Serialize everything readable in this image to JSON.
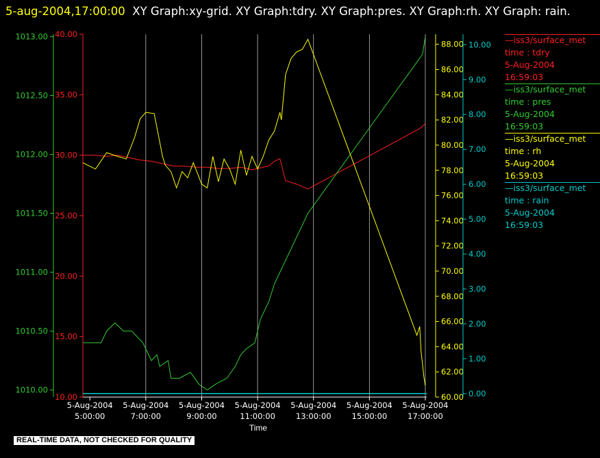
{
  "title": {
    "timestamp": "5-aug-2004,17:00:00",
    "graphs": "XY Graph:xy-grid.  XY Graph:tdry.  XY Graph:pres.  XY Graph:rh.  XY Graph: rain."
  },
  "footer": {
    "disclaimer": "REAL-TIME DATA, NOT CHECKED FOR QUALITY"
  },
  "colors": {
    "tdry": "#ff2020",
    "pres": "#33cc33",
    "rh": "#ffff00",
    "rain": "#00cccc",
    "grid": "#ffffff"
  },
  "chart_data": {
    "type": "line",
    "xlabel": "Time",
    "xlim": [
      4.75,
      17.05
    ],
    "x_ticks": [
      5,
      7,
      9,
      11,
      13,
      15,
      17
    ],
    "x_tick_labels": [
      [
        "5-Aug-2004",
        "5:00:00"
      ],
      [
        "5-Aug-2004",
        "7:00:00"
      ],
      [
        "5-Aug-2004",
        "9:00:00"
      ],
      [
        "5-Aug-2004",
        "11:00:00"
      ],
      [
        "5-Aug-2004",
        "13:00:00"
      ],
      [
        "5-Aug-2004",
        "15:00:00"
      ],
      [
        "5-Aug-2004",
        "17:00:00"
      ]
    ],
    "grid": "vertical",
    "axes": {
      "tdry": {
        "range": [
          10,
          40
        ],
        "ticks": [
          "10.00",
          "15.00",
          "20.00",
          "25.00",
          "30.00",
          "35.00",
          "40.00"
        ]
      },
      "pres": {
        "range": [
          1009.94,
          1013.02
        ],
        "ticks": [
          "1010.00",
          "1010.50",
          "1011.00",
          "1011.50",
          "1012.00",
          "1012.50",
          "1013.00"
        ]
      },
      "rh": {
        "range": [
          60,
          88.8
        ],
        "ticks": [
          "60.00",
          "62.00",
          "64.00",
          "66.00",
          "68.00",
          "70.00",
          "72.00",
          "74.00",
          "76.00",
          "78.00",
          "80.00",
          "82.00",
          "84.00",
          "86.00",
          "88.00"
        ]
      },
      "rain": {
        "range": [
          -0.1,
          10.3
        ],
        "ticks": [
          "0.00",
          "1.00",
          "2.00",
          "3.00",
          "4.00",
          "5.00",
          "6.00",
          "7.00",
          "8.00",
          "9.00",
          "10.00"
        ]
      }
    },
    "legend_placement": "right",
    "legend": [
      {
        "key": "tdry",
        "lines": [
          "—iss3/surface_met",
          "time : tdry",
          "5-Aug-2004",
          "16:59:03"
        ]
      },
      {
        "key": "pres",
        "lines": [
          "—iss3/surface_met",
          "time : pres",
          "5-Aug-2004",
          "16:59:03"
        ]
      },
      {
        "key": "rh",
        "lines": [
          "—iss3/surface_met",
          "time : rh",
          "5-Aug-2004",
          "16:59:03"
        ]
      },
      {
        "key": "rain",
        "lines": [
          "—iss3/surface_met",
          "time : rain",
          "5-Aug-2004",
          "16:59:03"
        ]
      }
    ],
    "series": [
      {
        "name": "iss3/surface_met time : tdry",
        "axis": "tdry",
        "x": [
          4.75,
          5.2,
          5.6,
          6.0,
          6.4,
          6.8,
          7.2,
          7.6,
          8.0,
          8.4,
          8.8,
          9.2,
          9.6,
          10.0,
          10.4,
          10.8,
          11.0,
          11.2,
          11.4,
          11.6,
          11.8,
          12.0,
          12.4,
          12.8,
          16.8,
          17.0
        ],
        "y": [
          30.0,
          30.0,
          29.9,
          30.0,
          29.8,
          29.6,
          29.5,
          29.3,
          29.1,
          29.1,
          29.0,
          29.0,
          28.9,
          28.9,
          29.0,
          28.8,
          28.9,
          29.0,
          29.1,
          29.5,
          29.7,
          27.9,
          27.6,
          27.2,
          32.2,
          32.6
        ]
      },
      {
        "name": "iss3/surface_met time : pres",
        "axis": "pres",
        "x": [
          4.75,
          5.4,
          5.6,
          5.9,
          6.2,
          6.5,
          6.9,
          7.0,
          7.2,
          7.4,
          7.5,
          7.8,
          7.9,
          8.2,
          8.6,
          8.9,
          9.2,
          9.5,
          9.9,
          10.2,
          10.4,
          10.6,
          10.9,
          11.1,
          11.4,
          11.6,
          11.8,
          12.0,
          12.2,
          12.4,
          12.6,
          12.8,
          16.9,
          17.0
        ],
        "y": [
          1010.4,
          1010.4,
          1010.5,
          1010.57,
          1010.5,
          1010.5,
          1010.4,
          1010.35,
          1010.25,
          1010.3,
          1010.2,
          1010.25,
          1010.1,
          1010.1,
          1010.15,
          1010.05,
          1010.0,
          1010.05,
          1010.1,
          1010.2,
          1010.3,
          1010.35,
          1010.4,
          1010.6,
          1010.75,
          1010.9,
          1011.0,
          1011.1,
          1011.2,
          1011.3,
          1011.4,
          1011.5,
          1012.85,
          1013.0
        ]
      },
      {
        "name": "iss3/surface_met time : rh",
        "axis": "rh",
        "x": [
          4.75,
          5.2,
          5.6,
          6.0,
          6.3,
          6.6,
          6.8,
          7.0,
          7.3,
          7.6,
          7.7,
          7.9,
          8.1,
          8.3,
          8.5,
          8.7,
          9.0,
          9.2,
          9.4,
          9.6,
          9.8,
          10.0,
          10.2,
          10.4,
          10.6,
          10.8,
          11.0,
          11.2,
          11.4,
          11.6,
          11.8,
          11.85,
          12.0,
          12.2,
          12.4,
          12.6,
          12.8,
          16.7,
          16.8,
          16.85,
          16.9,
          16.95,
          17.0
        ],
        "y": [
          78.6,
          78.1,
          79.4,
          79.1,
          78.9,
          80.6,
          82.1,
          82.6,
          82.5,
          79.1,
          78.4,
          77.9,
          76.6,
          77.9,
          77.4,
          78.6,
          76.9,
          76.6,
          79.1,
          77.1,
          78.9,
          78.1,
          76.9,
          79.6,
          77.6,
          79.1,
          78.1,
          79.1,
          80.4,
          81.1,
          82.6,
          82.0,
          85.6,
          86.9,
          87.4,
          87.6,
          88.4,
          64.9,
          65.6,
          63.6,
          62.6,
          61.6,
          60.9
        ]
      },
      {
        "name": "iss3/surface_met time : rain",
        "axis": "rain",
        "x": [
          4.75,
          17.05
        ],
        "y": [
          0.0,
          0.0
        ]
      }
    ]
  }
}
